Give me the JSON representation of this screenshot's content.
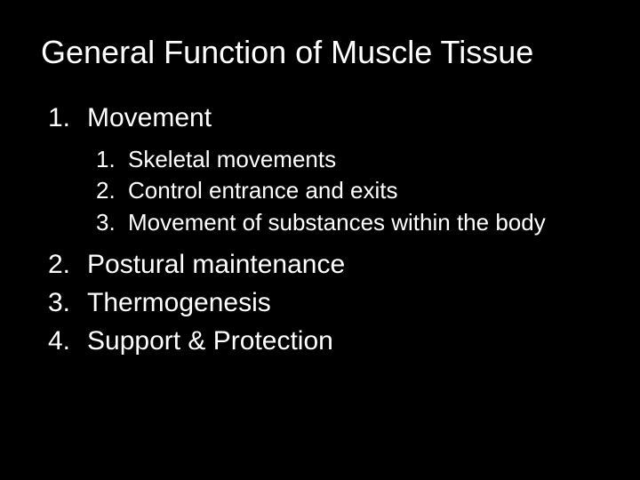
{
  "slide": {
    "background_color": "#000000",
    "text_color": "#ffffff",
    "font_family": "Arial",
    "title": "General Function of Muscle Tissue",
    "title_fontsize": 36,
    "level1_fontsize": 30,
    "level2_fontsize": 26,
    "items": [
      {
        "num": "1.",
        "text": "Movement",
        "subitems": [
          {
            "num": "1.",
            "text": "Skeletal movements"
          },
          {
            "num": "2.",
            "text": "Control entrance and exits"
          },
          {
            "num": "3.",
            "text": "Movement of substances within the body"
          }
        ]
      },
      {
        "num": "2.",
        "text": "Postural maintenance"
      },
      {
        "num": "3.",
        "text": "Thermogenesis"
      },
      {
        "num": "4.",
        "text": "Support & Protection"
      }
    ]
  }
}
